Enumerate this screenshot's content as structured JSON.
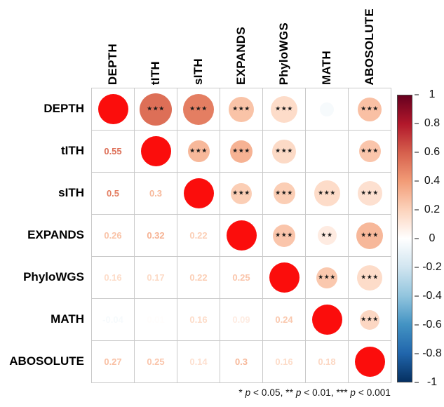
{
  "chart_data": {
    "type": "heatmap",
    "subtype": "correlation-matrix-correlogram",
    "title": "",
    "variables": [
      "DEPTH",
      "tITH",
      "sITH",
      "EXPANDS",
      "PhyloWGS",
      "MATH",
      "ABOSOLUTE"
    ],
    "matrix": [
      [
        1,
        0.55,
        0.5,
        0.26,
        0.16,
        -0.04,
        0.27
      ],
      [
        0.55,
        1,
        0.3,
        0.32,
        0.17,
        0.01,
        0.25
      ],
      [
        0.5,
        0.3,
        1,
        0.22,
        0.22,
        0.16,
        0.14
      ],
      [
        0.26,
        0.32,
        0.22,
        1,
        0.25,
        0.09,
        0.3
      ],
      [
        0.16,
        0.17,
        0.22,
        0.25,
        1,
        0.24,
        0.16
      ],
      [
        -0.04,
        0.01,
        0.16,
        0.09,
        0.24,
        1,
        0.18
      ],
      [
        0.27,
        0.25,
        0.14,
        0.3,
        0.16,
        0.18,
        1
      ]
    ],
    "pairs": [
      {
        "a": "DEPTH",
        "b": "tITH",
        "r": 0.55,
        "label": "0.55",
        "sig": "***",
        "size": 46
      },
      {
        "a": "DEPTH",
        "b": "sITH",
        "r": 0.5,
        "label": "0.5",
        "sig": "***",
        "size": 44
      },
      {
        "a": "DEPTH",
        "b": "EXPANDS",
        "r": 0.26,
        "label": "0.26",
        "sig": "***",
        "size": 36
      },
      {
        "a": "DEPTH",
        "b": "PhyloWGS",
        "r": 0.16,
        "label": "0.16",
        "sig": "***",
        "size": 38
      },
      {
        "a": "DEPTH",
        "b": "MATH",
        "r": -0.04,
        "label": "-0.04",
        "sig": "",
        "size": 20
      },
      {
        "a": "DEPTH",
        "b": "ABOSOLUTE",
        "r": 0.27,
        "label": "0.27",
        "sig": "***",
        "size": 34
      },
      {
        "a": "tITH",
        "b": "sITH",
        "r": 0.3,
        "label": "0.3",
        "sig": "***",
        "size": 31
      },
      {
        "a": "tITH",
        "b": "EXPANDS",
        "r": 0.32,
        "label": "0.32",
        "sig": "***",
        "size": 32
      },
      {
        "a": "tITH",
        "b": "PhyloWGS",
        "r": 0.17,
        "label": "0.17",
        "sig": "***",
        "size": 34
      },
      {
        "a": "tITH",
        "b": "MATH",
        "r": 0.01,
        "label": "0.01",
        "sig": "",
        "size": 0
      },
      {
        "a": "tITH",
        "b": "ABOSOLUTE",
        "r": 0.25,
        "label": "0.25",
        "sig": "***",
        "size": 31
      },
      {
        "a": "sITH",
        "b": "EXPANDS",
        "r": 0.22,
        "label": "0.22",
        "sig": "***",
        "size": 30
      },
      {
        "a": "sITH",
        "b": "PhyloWGS",
        "r": 0.22,
        "label": "0.22",
        "sig": "***",
        "size": 31
      },
      {
        "a": "sITH",
        "b": "MATH",
        "r": 0.16,
        "label": "0.16",
        "sig": "***",
        "size": 37
      },
      {
        "a": "sITH",
        "b": "ABOSOLUTE",
        "r": 0.14,
        "label": "0.14",
        "sig": "***",
        "size": 35
      },
      {
        "a": "EXPANDS",
        "b": "PhyloWGS",
        "r": 0.25,
        "label": "0.25",
        "sig": "***",
        "size": 32
      },
      {
        "a": "EXPANDS",
        "b": "MATH",
        "r": 0.09,
        "label": "0.09",
        "sig": "**",
        "size": 27
      },
      {
        "a": "EXPANDS",
        "b": "ABOSOLUTE",
        "r": 0.3,
        "label": "0.3",
        "sig": "***",
        "size": 38
      },
      {
        "a": "PhyloWGS",
        "b": "MATH",
        "r": 0.24,
        "label": "0.24",
        "sig": "***",
        "size": 30
      },
      {
        "a": "PhyloWGS",
        "b": "ABOSOLUTE",
        "r": 0.16,
        "label": "0.16",
        "sig": "***",
        "size": 36
      },
      {
        "a": "MATH",
        "b": "ABOSOLUTE",
        "r": 0.18,
        "label": "0.18",
        "sig": "***",
        "size": 28
      }
    ],
    "diagonal_value": 1,
    "colorbar": {
      "min": -1,
      "max": 1,
      "position": "right",
      "tick_labels": [
        "1",
        "0.8",
        "0.6",
        "0.4",
        "0.2",
        "0",
        "-0.2",
        "-0.4",
        "-0.6",
        "-0.8",
        "-1"
      ]
    },
    "footnote_text": "* p < 0.05, ** p < 0.01, *** p < 0.001",
    "footnote_segments": [
      {
        "text": "* ",
        "italic": false
      },
      {
        "text": "p",
        "italic": true
      },
      {
        "text": " < 0.05, ** ",
        "italic": false
      },
      {
        "text": "p",
        "italic": true
      },
      {
        "text": " < 0.01, *** ",
        "italic": false
      },
      {
        "text": "p",
        "italic": true
      },
      {
        "text": " < 0.001",
        "italic": false
      }
    ]
  },
  "colors": {
    "diagonal_circle": "#FB0D0C",
    "grid_line": "#C9C9C9",
    "star": "#1A1A1A",
    "label_text": "#000000",
    "gradient_stops": [
      {
        "v": -1,
        "c": "#053061"
      },
      {
        "v": -0.8,
        "c": "#2166AC"
      },
      {
        "v": -0.6,
        "c": "#4393C3"
      },
      {
        "v": -0.4,
        "c": "#92C5DE"
      },
      {
        "v": -0.2,
        "c": "#D1E5F0"
      },
      {
        "v": 0,
        "c": "#FFFFFF"
      },
      {
        "v": 0.2,
        "c": "#FCD3BC"
      },
      {
        "v": 0.4,
        "c": "#F29C77"
      },
      {
        "v": 0.6,
        "c": "#D6604D"
      },
      {
        "v": 0.8,
        "c": "#B2182B"
      },
      {
        "v": 1,
        "c": "#67001F"
      }
    ]
  }
}
